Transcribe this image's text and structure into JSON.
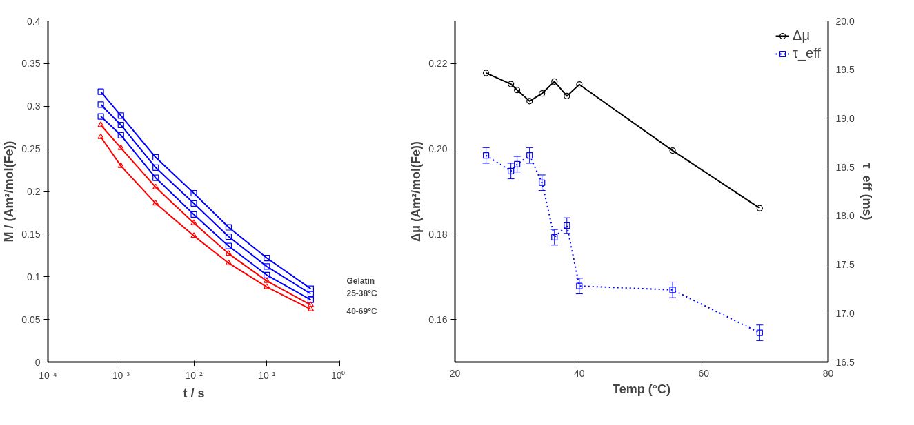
{
  "chart_data": [
    {
      "type": "line",
      "xlabel": "t / s",
      "ylabel": "M / (Am²/mol(Fe))",
      "log": "x",
      "xlim": [
        0.0001,
        1
      ],
      "ylim": [
        0,
        0.4
      ],
      "xticks": [
        {
          "value": 0.0001,
          "label": "10⁻⁴"
        },
        {
          "value": 0.001,
          "label": "10⁻³"
        },
        {
          "value": 0.01,
          "label": "10⁻²"
        },
        {
          "value": 0.1,
          "label": "10⁻¹"
        },
        {
          "value": 1,
          "label": "10⁰"
        }
      ],
      "yticks": [
        0,
        0.05,
        0.1,
        0.15,
        0.2,
        0.25,
        0.3,
        0.35,
        0.4
      ],
      "grid": false,
      "legend": false,
      "x": [
        0.00053,
        0.001,
        0.003,
        0.01,
        0.03,
        0.1,
        0.4
      ],
      "series": [
        {
          "color": "#0000ff",
          "marker": "square",
          "values": [
            0.317,
            0.289,
            0.24,
            0.198,
            0.158,
            0.122,
            0.086
          ]
        },
        {
          "color": "#0000ff",
          "marker": "square",
          "values": [
            0.302,
            0.278,
            0.228,
            0.186,
            0.147,
            0.112,
            0.08
          ]
        },
        {
          "color": "#0000ff",
          "marker": "square",
          "values": [
            0.288,
            0.266,
            0.216,
            0.173,
            0.136,
            0.102,
            0.073
          ]
        },
        {
          "color": "#ff0000",
          "marker": "triangle",
          "values": [
            0.278,
            0.251,
            0.205,
            0.163,
            0.127,
            0.095,
            0.067
          ]
        },
        {
          "color": "#ff0000",
          "marker": "triangle",
          "values": [
            0.264,
            0.23,
            0.186,
            0.148,
            0.116,
            0.088,
            0.062
          ]
        }
      ],
      "annotations": [
        "Gelatin",
        "25-38°C",
        "40-69°C"
      ]
    },
    {
      "type": "line",
      "xlabel": "Temp (°C)",
      "ylabel": "Δμ (Am²/mol(Fe))",
      "y2label": "τ_eff (ms)",
      "xlim": [
        20,
        80
      ],
      "ylim": [
        0.15,
        0.23
      ],
      "y2lim": [
        16.5,
        20.0
      ],
      "xticks": [
        20,
        40,
        60,
        80
      ],
      "yticks": [
        {
          "value": 0.16,
          "label": "0.16"
        },
        {
          "value": 0.18,
          "label": "0.18"
        },
        {
          "value": 0.2,
          "label": "0.20"
        },
        {
          "value": 0.22,
          "label": "0.22"
        }
      ],
      "y2ticks": [
        16.5,
        {
          "value": 17,
          "label": "17.0"
        },
        17.5,
        {
          "value": 18,
          "label": "18.0"
        },
        18.5,
        {
          "value": 19,
          "label": "19.0"
        },
        19.5,
        {
          "value": 20,
          "label": "20.0"
        }
      ],
      "grid": false,
      "legend": "top right",
      "x": [
        25,
        29,
        30,
        32,
        34,
        36,
        38,
        40,
        55,
        69
      ],
      "series": [
        {
          "name": "Δμ",
          "color": "#000000",
          "marker": "circle",
          "line_style": "solid",
          "values": [
            0.2178,
            0.2152,
            0.2138,
            0.2112,
            0.213,
            0.2158,
            0.2124,
            0.2151,
            0.1996,
            0.1861
          ]
        },
        {
          "name": "τ_eff",
          "color": "#0000ff",
          "marker": "square",
          "line_style": "dotted",
          "axis": "y2",
          "values": [
            18.62,
            18.46,
            18.53,
            18.62,
            18.34,
            17.78,
            17.9,
            17.28,
            17.24,
            16.8
          ],
          "errors": [
            0.08,
            0.08,
            0.08,
            0.08,
            0.08,
            0.08,
            0.08,
            0.08,
            0.08,
            0.08
          ]
        }
      ]
    }
  ]
}
